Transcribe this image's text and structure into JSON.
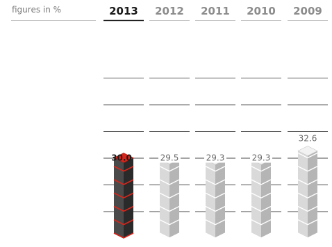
{
  "chart_data": {
    "type": "bar",
    "unit_label": "figures in %",
    "categories": [
      "2013",
      "2012",
      "2011",
      "2010",
      "2009"
    ],
    "values": [
      30.0,
      29.5,
      29.3,
      29.3,
      32.6
    ],
    "value_labels": [
      "30.0",
      "29.5",
      "29.3",
      "29.3",
      "32.6"
    ],
    "highlight_index": 0,
    "ylim": [
      0,
      60
    ],
    "grid": true,
    "colors": {
      "highlight_top": "#d8261c",
      "highlight_side_light": "#4a4a4a",
      "highlight_side_dark": "#2a2a2a",
      "normal_top": "#f2f2f2",
      "normal_side_light": "#d9d9d9",
      "normal_side_dark": "#b5b5b5",
      "gridline": "#4a4a4a",
      "header_active": "#1a1a1a",
      "header_inactive": "#8c8c8c"
    }
  }
}
